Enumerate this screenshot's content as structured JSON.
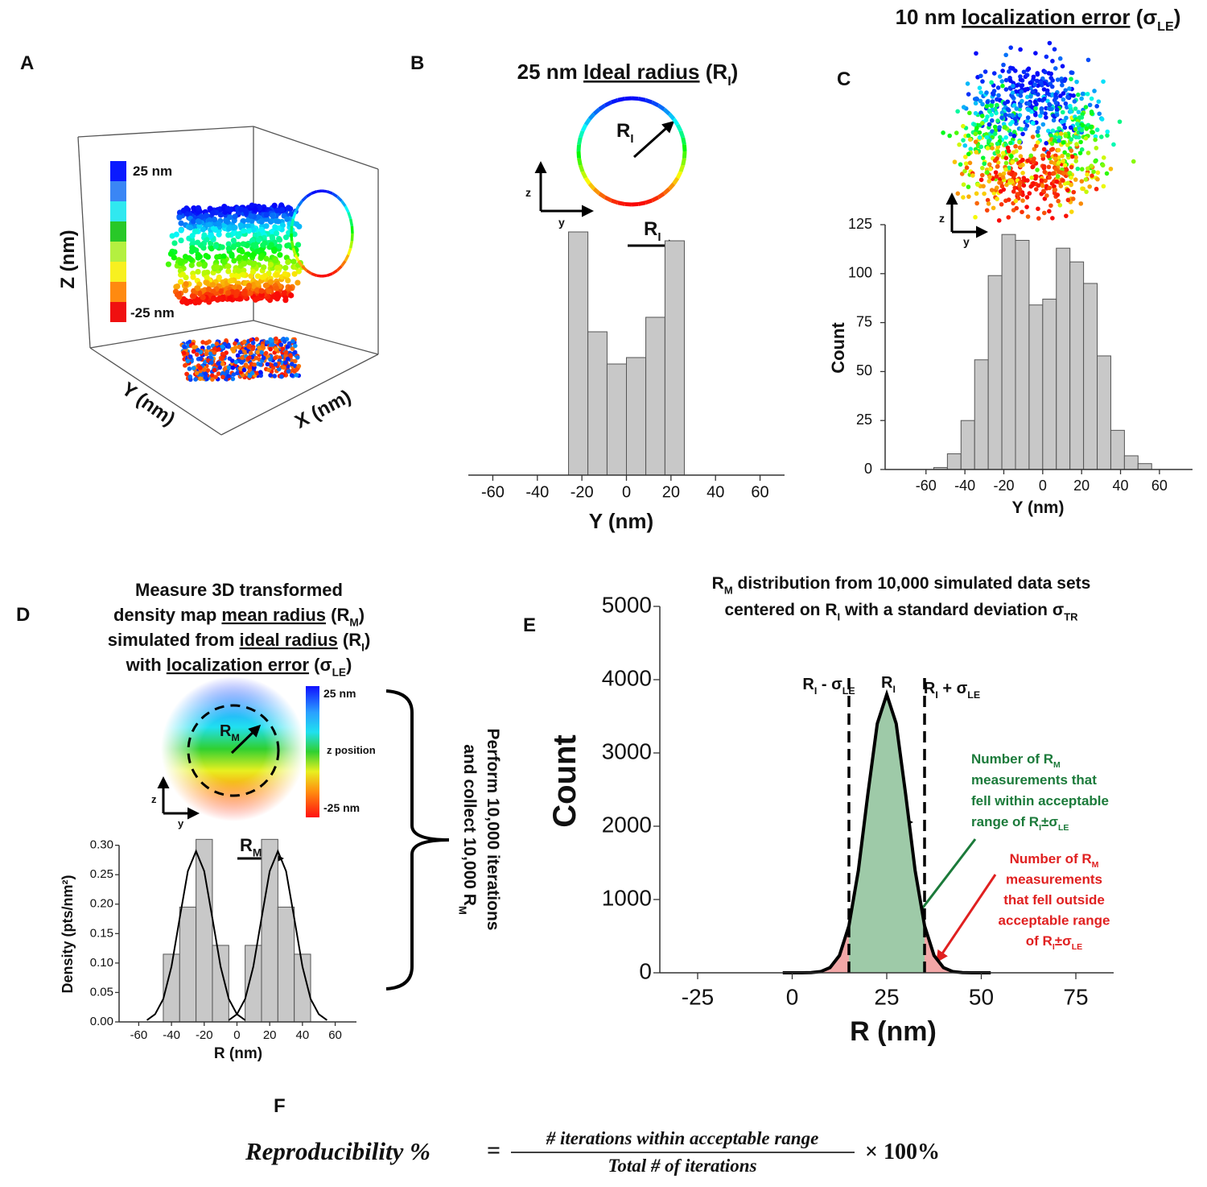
{
  "panel_labels": [
    "A",
    "B",
    "C",
    "D",
    "E",
    "F"
  ],
  "panel_a": {
    "colorbar_labels": [
      "25 nm",
      "-25 nm"
    ],
    "z_label": "Z (nm)",
    "y_label": "Y (nm)",
    "x_label": "X (nm)"
  },
  "chart_data": [
    {
      "type": "histogram",
      "title": [
        "25 nm ",
        "Ideal radius",
        " (R",
        "I",
        ")"
      ],
      "bins": [
        -26,
        -17.3,
        -8.7,
        0,
        8.7,
        17.3,
        26
      ],
      "values": [
        302,
        178,
        138,
        146,
        196,
        291
      ],
      "color": "#c8c8c8",
      "xlim": [
        -71,
        71
      ],
      "xticks": [
        -60,
        -40,
        -20,
        0,
        20,
        40,
        60
      ],
      "xlabel": "Y (nm)"
    },
    {
      "type": "histogram",
      "title": [
        "10 nm ",
        "localization error",
        " (σ",
        "LE",
        ")"
      ],
      "bins": [
        -56,
        -49,
        -42,
        -35,
        -28,
        -21,
        -14,
        -7,
        0,
        7,
        14,
        21,
        28,
        35,
        42,
        49,
        56
      ],
      "values": [
        1,
        8,
        25,
        56,
        99,
        120,
        117,
        84,
        87,
        113,
        106,
        95,
        58,
        20,
        7,
        3
      ],
      "color": "#c8c8c8",
      "xlim": [
        -81,
        77
      ],
      "xticks": [
        -60,
        -40,
        -20,
        0,
        20,
        40,
        60
      ],
      "ylim": [
        0,
        125
      ],
      "yticks": [
        0,
        25,
        50,
        75,
        100,
        125
      ],
      "xlabel": "Y (nm)",
      "ylabel": "Count"
    },
    {
      "type": "histogram",
      "title": [
        [
          "Measure 3D transformed"
        ],
        [
          "density map ",
          "mean radius",
          " (R",
          "M",
          ")"
        ],
        [
          "simulated from ",
          "ideal radius",
          " (R",
          "I",
          ")"
        ],
        [
          "with ",
          "localization error",
          " (σ",
          "LE",
          ")"
        ]
      ],
      "bins": [
        -45,
        -35,
        -25,
        -15,
        -5,
        5,
        15,
        25,
        35,
        45
      ],
      "values": [
        0.115,
        0.195,
        0.31,
        0.13,
        0,
        0.13,
        0.31,
        0.195,
        0.115
      ],
      "color": "#c8c8c8",
      "curves": [
        {
          "x": [
            -55,
            -50,
            -45,
            -40,
            -35,
            -30,
            -25,
            -20,
            -15,
            -10,
            -5,
            0,
            5
          ],
          "values": [
            0.003,
            0.013,
            0.039,
            0.094,
            0.176,
            0.256,
            0.29,
            0.256,
            0.176,
            0.094,
            0.039,
            0.013,
            0.003
          ]
        },
        {
          "x": [
            -5,
            0,
            5,
            10,
            15,
            20,
            25,
            30,
            35,
            40,
            45,
            50,
            55
          ],
          "values": [
            0.003,
            0.013,
            0.039,
            0.094,
            0.176,
            0.256,
            0.29,
            0.256,
            0.176,
            0.094,
            0.039,
            0.013,
            0.003
          ]
        }
      ],
      "xlim": [
        -72,
        73
      ],
      "xticks": [
        -60,
        -40,
        -20,
        0,
        20,
        40,
        60
      ],
      "ylim": [
        0,
        0.32
      ],
      "yticks": [
        {
          "value": 0,
          "label": "0.00"
        },
        0.05,
        {
          "value": 0.1,
          "label": "0.10"
        },
        0.15,
        {
          "value": 0.2,
          "label": "0.20"
        },
        0.25,
        {
          "value": 0.3,
          "label": "0.30"
        }
      ],
      "xlabel": "R (nm)",
      "ylabel": "Density (pts/nm²)"
    },
    {
      "type": "line",
      "title": [
        [
          "R",
          "M",
          " distribution from 10,000 simulated data sets"
        ],
        [
          "centered on R",
          "I",
          " with a standard deviation σ",
          "TR"
        ]
      ],
      "x": [
        -2.5,
        0,
        2.5,
        5,
        7.5,
        10,
        12.5,
        15,
        17.5,
        20,
        22.5,
        25,
        27.5,
        30,
        32.5,
        35,
        37.5,
        40,
        42.5,
        45,
        47.5,
        50,
        52.5
      ],
      "values": [
        0,
        0,
        0,
        3,
        16,
        70,
        236,
        642,
        1398,
        2435,
        3400,
        3800,
        3400,
        2435,
        1398,
        642,
        236,
        70,
        16,
        3,
        0,
        0,
        0
      ],
      "dashed_lines": [
        15,
        35
      ],
      "within_color": "#9ecaa8",
      "outside_color": "#f2a7a7",
      "xlim": [
        -35,
        85
      ],
      "xticks": [
        -25,
        0,
        25,
        50,
        75
      ],
      "ylim": [
        0,
        5000
      ],
      "yticks": [
        0,
        1000,
        2000,
        3000,
        4000,
        5000
      ],
      "xlabel": "R (nm)",
      "ylabel": "Count"
    }
  ],
  "annotations": {
    "b": {
      "radius_label": [
        "R",
        "I"
      ],
      "arrow_label": [
        "R",
        "I"
      ],
      "z": "z",
      "y": "y"
    },
    "c": {
      "z": "z",
      "y": "y"
    },
    "d": {
      "colorbar": [
        "25 nm",
        "z position",
        "-25 nm"
      ],
      "radius_label": [
        "R",
        "M"
      ],
      "arrow_label": [
        "R",
        "M"
      ],
      "z": "z",
      "y": "y",
      "brace": [
        [
          "Perform 10,000 iterations"
        ],
        [
          "and collect 10,000 R",
          "M"
        ]
      ]
    },
    "e": {
      "minus": [
        "R",
        "I",
        " - σ",
        "LE"
      ],
      "center": [
        "R",
        "I"
      ],
      "plus": [
        "R",
        "I",
        " + σ",
        "LE"
      ],
      "sigma": [
        "σ",
        "TR"
      ],
      "within": [
        [
          "Number of R",
          "M"
        ],
        [
          "measurements that"
        ],
        [
          "fell within acceptable"
        ],
        [
          "range of R",
          "I",
          "±σ",
          "LE"
        ]
      ],
      "outside": [
        [
          "Number of R",
          "M"
        ],
        [
          "measurements"
        ],
        [
          "that fell outside"
        ],
        [
          "acceptable range"
        ],
        [
          "of R",
          "I",
          "±σ",
          "LE"
        ]
      ]
    }
  },
  "formula": {
    "lhs": "Reproducibility %",
    "equals": "=",
    "numerator": "# iterations within acceptable range",
    "denominator": "Total # of iterations",
    "factor": "× 100%"
  }
}
